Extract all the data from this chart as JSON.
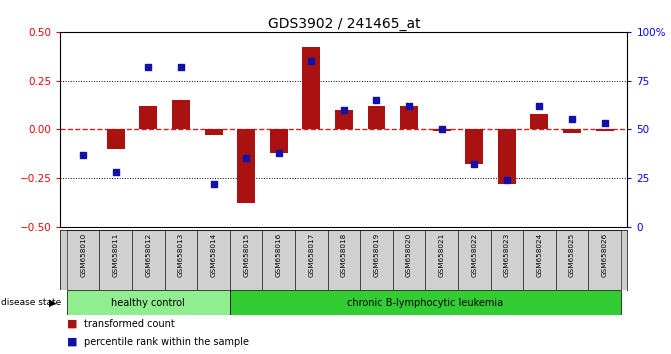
{
  "title": "GDS3902 / 241465_at",
  "samples": [
    "GSM658010",
    "GSM658011",
    "GSM658012",
    "GSM658013",
    "GSM658014",
    "GSM658015",
    "GSM658016",
    "GSM658017",
    "GSM658018",
    "GSM658019",
    "GSM658020",
    "GSM658021",
    "GSM658022",
    "GSM658023",
    "GSM658024",
    "GSM658025",
    "GSM658026"
  ],
  "transformed_count": [
    0.0,
    -0.1,
    0.12,
    0.15,
    -0.03,
    -0.38,
    -0.12,
    0.42,
    0.1,
    0.12,
    0.12,
    -0.01,
    -0.18,
    -0.28,
    0.08,
    -0.02,
    -0.01
  ],
  "percentile_rank": [
    37,
    28,
    82,
    82,
    22,
    35,
    38,
    85,
    60,
    65,
    62,
    50,
    32,
    24,
    62,
    55,
    53
  ],
  "bar_color": "#aa1111",
  "dot_color": "#1111aa",
  "zero_line_color": "#cc2222",
  "dotted_line_color": "#000000",
  "healthy_bg": "#90ee90",
  "leukemia_bg": "#32cd32",
  "sample_bg": "#cccccc",
  "ylim_left": [
    -0.5,
    0.5
  ],
  "ylim_right": [
    0,
    100
  ],
  "yticks_left": [
    -0.5,
    -0.25,
    0,
    0.25,
    0.5
  ],
  "yticks_right": [
    0,
    25,
    50,
    75,
    100
  ],
  "ytick_labels_right": [
    "0",
    "25",
    "50",
    "75",
    "100%"
  ],
  "n_healthy": 5,
  "n_leukemia": 12
}
